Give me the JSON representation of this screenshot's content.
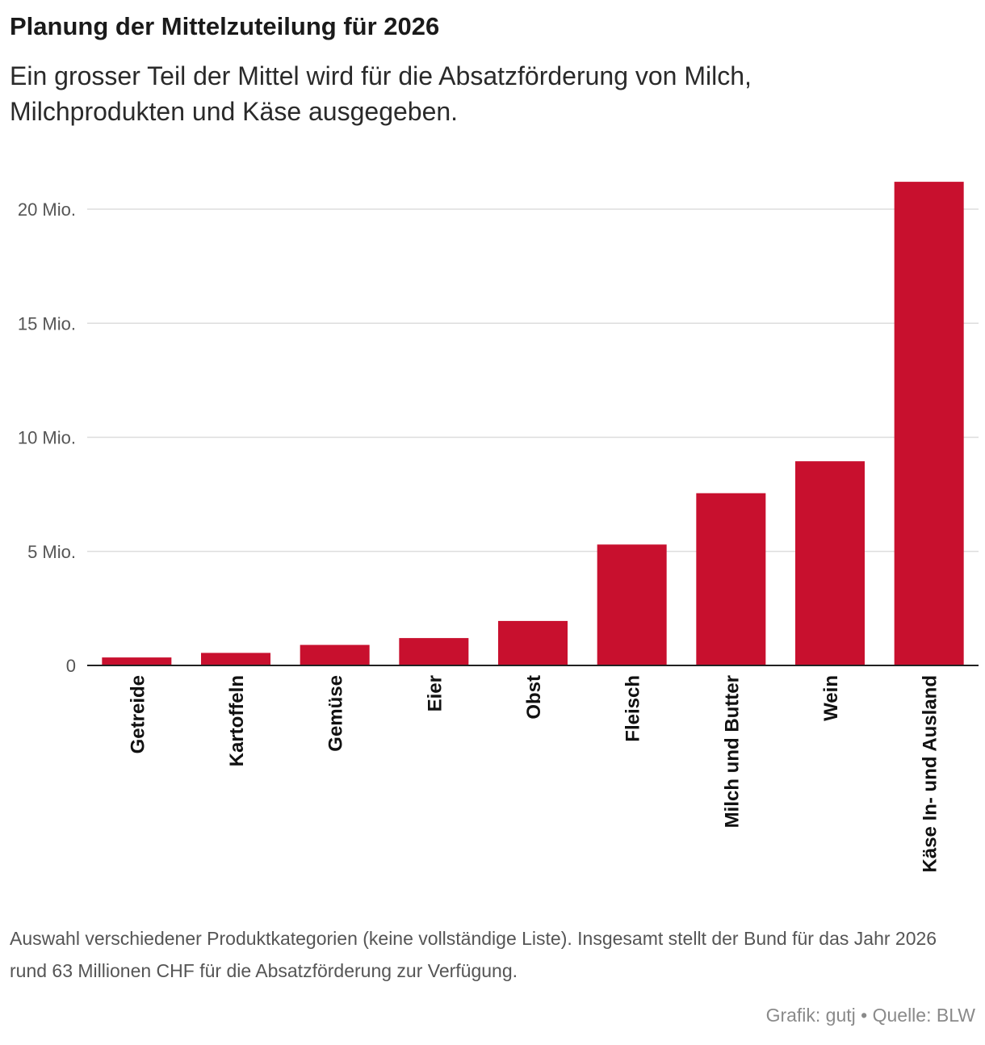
{
  "title": "Planung der Mittelzuteilung für 2026",
  "subtitle": "Ein grosser Teil der Mittel wird für die Absatzförderung von Milch, Milchprodukten und Käse ausgegeben.",
  "note": "Auswahl verschiedener Produktkategorien (keine vollständige Liste). Insgesamt stellt der Bund für das Jahr 2026 rund 63 Millionen CHF für die Absatzförderung zur Verfügung.",
  "credit": "Grafik: gutj • Quelle: BLW",
  "colors": {
    "bar": "#c8102e",
    "grid": "#dddddd",
    "baseline": "#222222",
    "tick_text": "#555555",
    "category_text": "#111111"
  },
  "chart_data": {
    "type": "bar",
    "categories": [
      "Getreide",
      "Kartoffeln",
      "Gemüse",
      "Eier",
      "Obst",
      "Fleisch",
      "Milch und Butter",
      "Wein",
      "Käse In- und Ausland"
    ],
    "values": [
      350000,
      550000,
      900000,
      1200000,
      1950000,
      5300000,
      7550000,
      8950000,
      21200000
    ],
    "ylim": [
      0,
      22000000
    ],
    "yticks": [
      0,
      5000000,
      10000000,
      15000000,
      20000000
    ],
    "ytick_labels": [
      "0",
      "5 Mio.",
      "10 Mio.",
      "15 Mio.",
      "20 Mio."
    ],
    "grid": true,
    "legend": "none"
  }
}
